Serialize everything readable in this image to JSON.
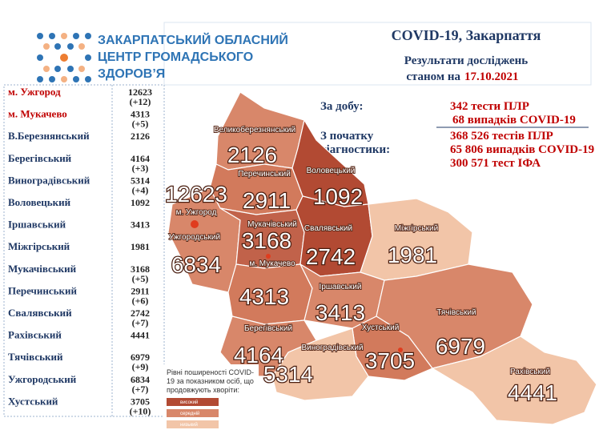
{
  "header": {
    "org": [
      "ЗАКАРПАТСЬКИЙ ОБЛАСНИЙ",
      "ЦЕНТР ГРОМАДСЬКОГО",
      "ЗДОРОВ’Я"
    ],
    "title": "COVID-19, Закарпаття",
    "subtitle": "Результати досліджень",
    "date_prefix": "станом на",
    "date": "17.10.2021"
  },
  "stats": {
    "daily_label": "За добу:",
    "daily": [
      "342 тести ПЛР",
      "68 випадків COVID-19"
    ],
    "total_label": [
      "З початку",
      "діагностики:"
    ],
    "total": [
      "368 526 тестів ПЛР",
      "65 806 випадків COVID-19",
      "300 571 тест ІФА"
    ]
  },
  "table": {
    "rows": [
      [
        "м. Ужгород",
        12623,
        "(+12)"
      ],
      [
        "м. Мукачево",
        4313,
        "(+5)"
      ],
      [
        "В.Березнянський",
        2126,
        null
      ],
      [
        "Берегівський",
        4164,
        "(+3)"
      ],
      [
        "Виноградівський",
        5314,
        "(+4)"
      ],
      [
        "Воловецький",
        1092,
        null
      ],
      [
        "Іршавський",
        3413,
        null
      ],
      [
        "Міжгірський",
        1981,
        null
      ],
      [
        "Мукачівський",
        3168,
        "(+5)"
      ],
      [
        "Перечинський",
        2911,
        "(+6)"
      ],
      [
        "Свалявський",
        2742,
        "(+7)"
      ],
      [
        "Рахівський",
        4441,
        null
      ],
      [
        "Тячівський",
        6979,
        "(+9)"
      ],
      [
        "Ужгородський",
        6834,
        "(+7)"
      ],
      [
        "Хустський",
        3705,
        "(+10)"
      ]
    ]
  },
  "map": {
    "regions": [
      {
        "label": "Великоберезнянський",
        "value": 2126
      },
      {
        "label": "Перечинський",
        "value": 2911
      },
      {
        "label": "Воловецький",
        "value": 1092
      },
      {
        "label": "м. Ужгород",
        "value": 12623
      },
      {
        "label": "Мукачівський",
        "value": 3168
      },
      {
        "label": "Свалявський",
        "value": 2742
      },
      {
        "label": "Міжгірський",
        "value": 1981
      },
      {
        "label": "Ужгородський",
        "value": 6834
      },
      {
        "label": "м. Мукачево",
        "value": 4313
      },
      {
        "label": "Іршавський",
        "value": 3413
      },
      {
        "label": "Тячівський",
        "value": 6979
      },
      {
        "label": "Хустський",
        "value": 3705
      },
      {
        "label": "Берегівський",
        "value": 4164
      },
      {
        "label": "Виноградівський",
        "value": 5314
      },
      {
        "label": "Рахівський",
        "value": 4441
      }
    ],
    "legend": {
      "title": [
        "Рівні поширеності COVID-",
        "19 за показником осіб, що",
        "продовжують хворіти:"
      ],
      "items": [
        "високий",
        "середній",
        "низький"
      ]
    }
  }
}
